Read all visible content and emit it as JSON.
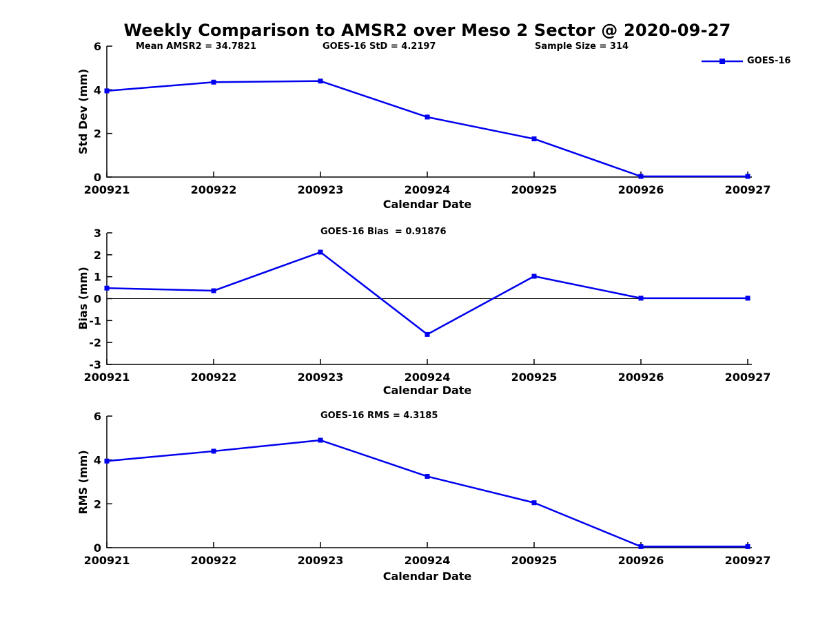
{
  "title": "Weekly Comparison to AMSR2 over Meso 2 Sector @ 2020-09-27",
  "legend": {
    "label": "GOES-16"
  },
  "line_color": "#0000ee",
  "axis_color": "#000000",
  "chart_data": [
    {
      "id": "std-dev",
      "type": "line",
      "xlabel": "Calendar Date",
      "ylabel": "Std Dev (mm)",
      "ylim": [
        0,
        6
      ],
      "yticks": [
        0,
        2,
        4,
        6
      ],
      "grid": false,
      "zero_line": false,
      "legend_position": "top-right-outside",
      "categories": [
        "200921",
        "200922",
        "200923",
        "200924",
        "200925",
        "200926",
        "200927"
      ],
      "series": [
        {
          "name": "GOES-16",
          "values": [
            3.95,
            4.35,
            4.4,
            2.75,
            1.75,
            0.03,
            0.03
          ]
        }
      ],
      "annotations": [
        "Mean AMSR2 = 34.7821",
        "GOES-16 StD = 4.2197",
        "Sample Size = 314"
      ]
    },
    {
      "id": "bias",
      "type": "line",
      "xlabel": "Calendar Date",
      "ylabel": "Bias (mm)",
      "ylim": [
        -3,
        3
      ],
      "yticks": [
        3,
        2,
        1,
        0,
        -1,
        -2,
        -3
      ],
      "grid": false,
      "zero_line": true,
      "categories": [
        "200921",
        "200922",
        "200923",
        "200924",
        "200925",
        "200926",
        "200927"
      ],
      "series": [
        {
          "name": "GOES-16",
          "values": [
            0.48,
            0.36,
            2.12,
            -1.63,
            1.02,
            0.02,
            0.02
          ]
        }
      ],
      "annotations": [
        "GOES-16 Bias  = 0.91876"
      ]
    },
    {
      "id": "rms",
      "type": "line",
      "xlabel": "Calendar Date",
      "ylabel": "RMS (mm)",
      "ylim": [
        0,
        6
      ],
      "yticks": [
        0,
        2,
        4,
        6
      ],
      "grid": false,
      "zero_line": false,
      "categories": [
        "200921",
        "200922",
        "200923",
        "200924",
        "200925",
        "200926",
        "200927"
      ],
      "series": [
        {
          "name": "GOES-16",
          "values": [
            3.95,
            4.4,
            4.9,
            3.25,
            2.05,
            0.05,
            0.05
          ]
        }
      ],
      "annotations": [
        "GOES-16 RMS = 4.3185"
      ]
    }
  ]
}
